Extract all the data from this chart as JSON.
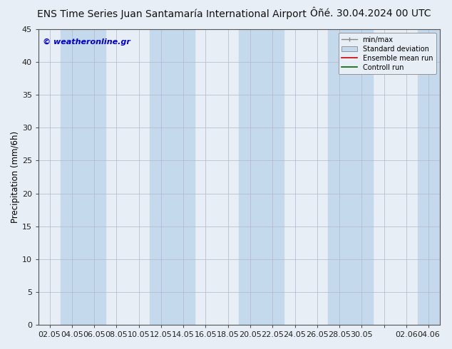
{
  "title_left": "ENS Time Series Juan Santamaría International Airport",
  "title_right": "Ôñé. 30.04.2024 00 UTC",
  "ylabel": "Precipitation (mm/6h)",
  "watermark": "© weatheronline.gr",
  "watermark_color": "#0000cc",
  "ylim": [
    0,
    45
  ],
  "yticks": [
    0,
    5,
    10,
    15,
    20,
    25,
    30,
    35,
    40,
    45
  ],
  "xtick_labels": [
    "02.05",
    "04.05",
    "06.05",
    "08.05",
    "10.05",
    "12.05",
    "14.05",
    "16.05",
    "18.05",
    "20.05",
    "22.05",
    "24.05",
    "26.05",
    "28.05",
    "30.05",
    "",
    "02.06",
    "04.06"
  ],
  "background_color": "#e8eef5",
  "plot_bg_color": "#e8eef5",
  "band_color": "#c5d9ed",
  "band_indices": [
    1,
    2,
    5,
    6,
    9,
    10,
    13,
    14,
    17
  ],
  "legend_labels": [
    "min/max",
    "Standard deviation",
    "Ensemble mean run",
    "Controll run"
  ],
  "grid_color": "#b0b8c8",
  "title_fontsize": 10,
  "tick_fontsize": 8
}
